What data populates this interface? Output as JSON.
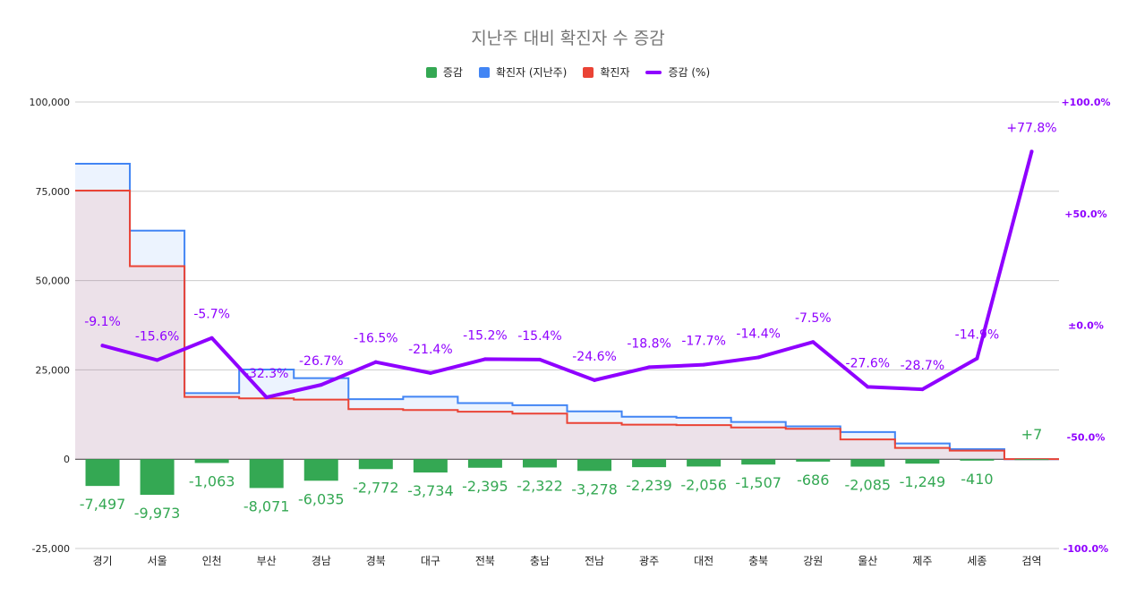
{
  "chart_data": {
    "type": "bar",
    "title": "지난주 대비 확진자 수 증감",
    "legend": [
      {
        "label": "증감",
        "color": "#34a853",
        "kind": "bar"
      },
      {
        "label": "확진자 (지난주)",
        "color": "#4285f4",
        "kind": "step"
      },
      {
        "label": "확진자",
        "color": "#ea4335",
        "kind": "step"
      },
      {
        "label": "증감 (%)",
        "color": "#8f00ff",
        "kind": "line"
      }
    ],
    "categories": [
      "경기",
      "서울",
      "인천",
      "부산",
      "경남",
      "경북",
      "대구",
      "전북",
      "충남",
      "전남",
      "광주",
      "대전",
      "충북",
      "강원",
      "울산",
      "제주",
      "세종",
      "검역"
    ],
    "series": [
      {
        "name": "증감",
        "axis": "left",
        "values": [
          -7497,
          -9973,
          -1063,
          -8071,
          -6035,
          -2772,
          -3734,
          -2395,
          -2322,
          -3278,
          -2239,
          -2056,
          -1507,
          -686,
          -2085,
          -1249,
          -410,
          7
        ]
      },
      {
        "name": "확진자 (지난주)",
        "axis": "left",
        "values": [
          82700,
          64000,
          18500,
          25100,
          22700,
          16800,
          17500,
          15700,
          15100,
          13400,
          11900,
          11600,
          10400,
          9200,
          7600,
          4400,
          2800,
          0
        ]
      },
      {
        "name": "확진자",
        "axis": "left",
        "values": [
          75203,
          54027,
          17437,
          17029,
          16665,
          14028,
          13766,
          13305,
          12778,
          10122,
          9661,
          9544,
          8893,
          8514,
          5515,
          3151,
          2390,
          7
        ]
      },
      {
        "name": "증감 (%)",
        "axis": "right",
        "values": [
          -9.1,
          -15.6,
          -5.7,
          -32.3,
          -26.7,
          -16.5,
          -21.4,
          -15.2,
          -15.4,
          -24.6,
          -18.8,
          -17.7,
          -14.4,
          -7.5,
          -27.6,
          -28.7,
          -14.9,
          77.8
        ]
      }
    ],
    "bar_labels": [
      "-7,497",
      "-9,973",
      "-1,063",
      "-8,071",
      "-6,035",
      "-2,772",
      "-3,734",
      "-2,395",
      "-2,322",
      "-3,278",
      "-2,239",
      "-2,056",
      "-1,507",
      "-686",
      "-2,085",
      "-1,249",
      "-410",
      "+7"
    ],
    "pct_labels": [
      "-9.1%",
      "-15.6%",
      "-5.7%",
      "-32.3%",
      "-26.7%",
      "-16.5%",
      "-21.4%",
      "-15.2%",
      "-15.4%",
      "-24.6%",
      "-18.8%",
      "-17.7%",
      "-14.4%",
      "-7.5%",
      "-27.6%",
      "-28.7%",
      "-14.9%",
      "+77.8%"
    ],
    "y_left": {
      "min": -25000,
      "max": 100000,
      "ticks": [
        -25000,
        0,
        25000,
        50000,
        75000,
        100000
      ],
      "tick_labels": [
        "-25,000",
        "0",
        "25,000",
        "50,000",
        "75,000",
        "100,000"
      ]
    },
    "y_right": {
      "min": -100,
      "max": 100,
      "ticks": [
        -100,
        -50,
        0,
        50,
        100
      ],
      "tick_labels": [
        "-100.0%",
        "-50.0%",
        "±0.0%",
        "+50.0%",
        "+100.0%"
      ]
    },
    "grid": true,
    "legend_position": "top-center"
  }
}
